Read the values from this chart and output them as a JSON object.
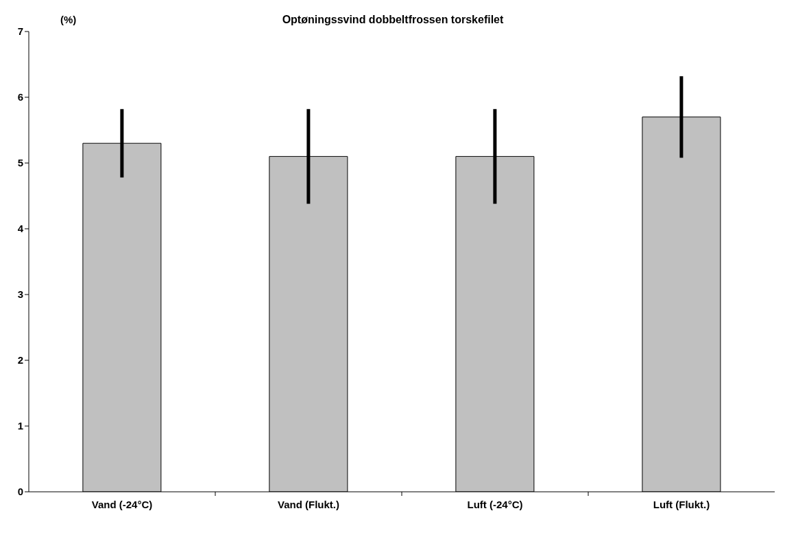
{
  "chart_data": {
    "type": "bar",
    "title": "Optøningssvind dobbeltfrossen torskefilet",
    "ylabel": "(%)",
    "categories": [
      "Vand (-24°C)",
      "Vand (Flukt.)",
      "Luft (-24°C)",
      "Luft (Flukt.)"
    ],
    "values": [
      5.3,
      5.1,
      5.1,
      5.7
    ],
    "errors": [
      0.52,
      0.72,
      0.72,
      0.62
    ],
    "color": "#c0c0c0",
    "ylim": [
      0,
      7
    ],
    "yticks": [
      0,
      1,
      2,
      3,
      4,
      5,
      6,
      7
    ],
    "grid": false,
    "legend": false
  }
}
